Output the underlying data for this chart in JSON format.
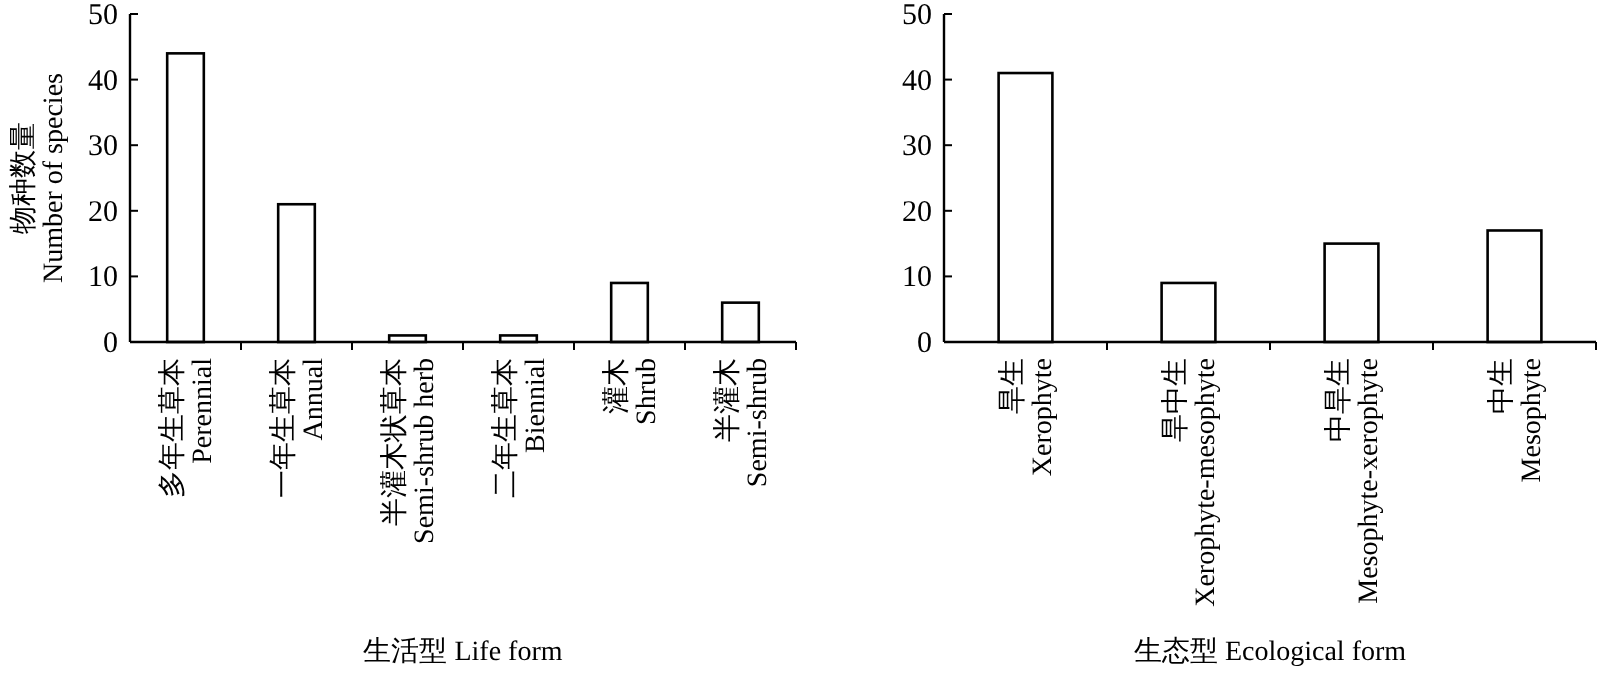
{
  "chart_data": [
    {
      "type": "bar",
      "xlabel": "生活型 Life form",
      "ylabel": "物种数量\nNumber of species",
      "categories": [
        "多年生草本\nPerennial",
        "一年生草本\nAnnual",
        "半灌木状草本\nSemi-shrub herb",
        "二年生草本\nBiennial",
        "灌木\nShrub",
        "半灌木\nSemi-shrub"
      ],
      "values": [
        44,
        21,
        1,
        1,
        9,
        6
      ],
      "color": "#ffffff",
      "ylim": [
        0,
        50
      ],
      "yticks": [
        0,
        10,
        20,
        30,
        40,
        50
      ]
    },
    {
      "type": "bar",
      "xlabel": "生态型 Ecological form",
      "categories": [
        "旱生\nXerophyte",
        "旱中生\nXerophyte-mesophyte",
        "中旱生\nMesophyte-xerophyte",
        "中生\nMesophyte"
      ],
      "values": [
        41,
        9,
        15,
        17
      ],
      "color": "#ffffff",
      "ylim": [
        0,
        50
      ],
      "yticks": [
        0,
        10,
        20,
        30,
        40,
        50
      ]
    }
  ]
}
